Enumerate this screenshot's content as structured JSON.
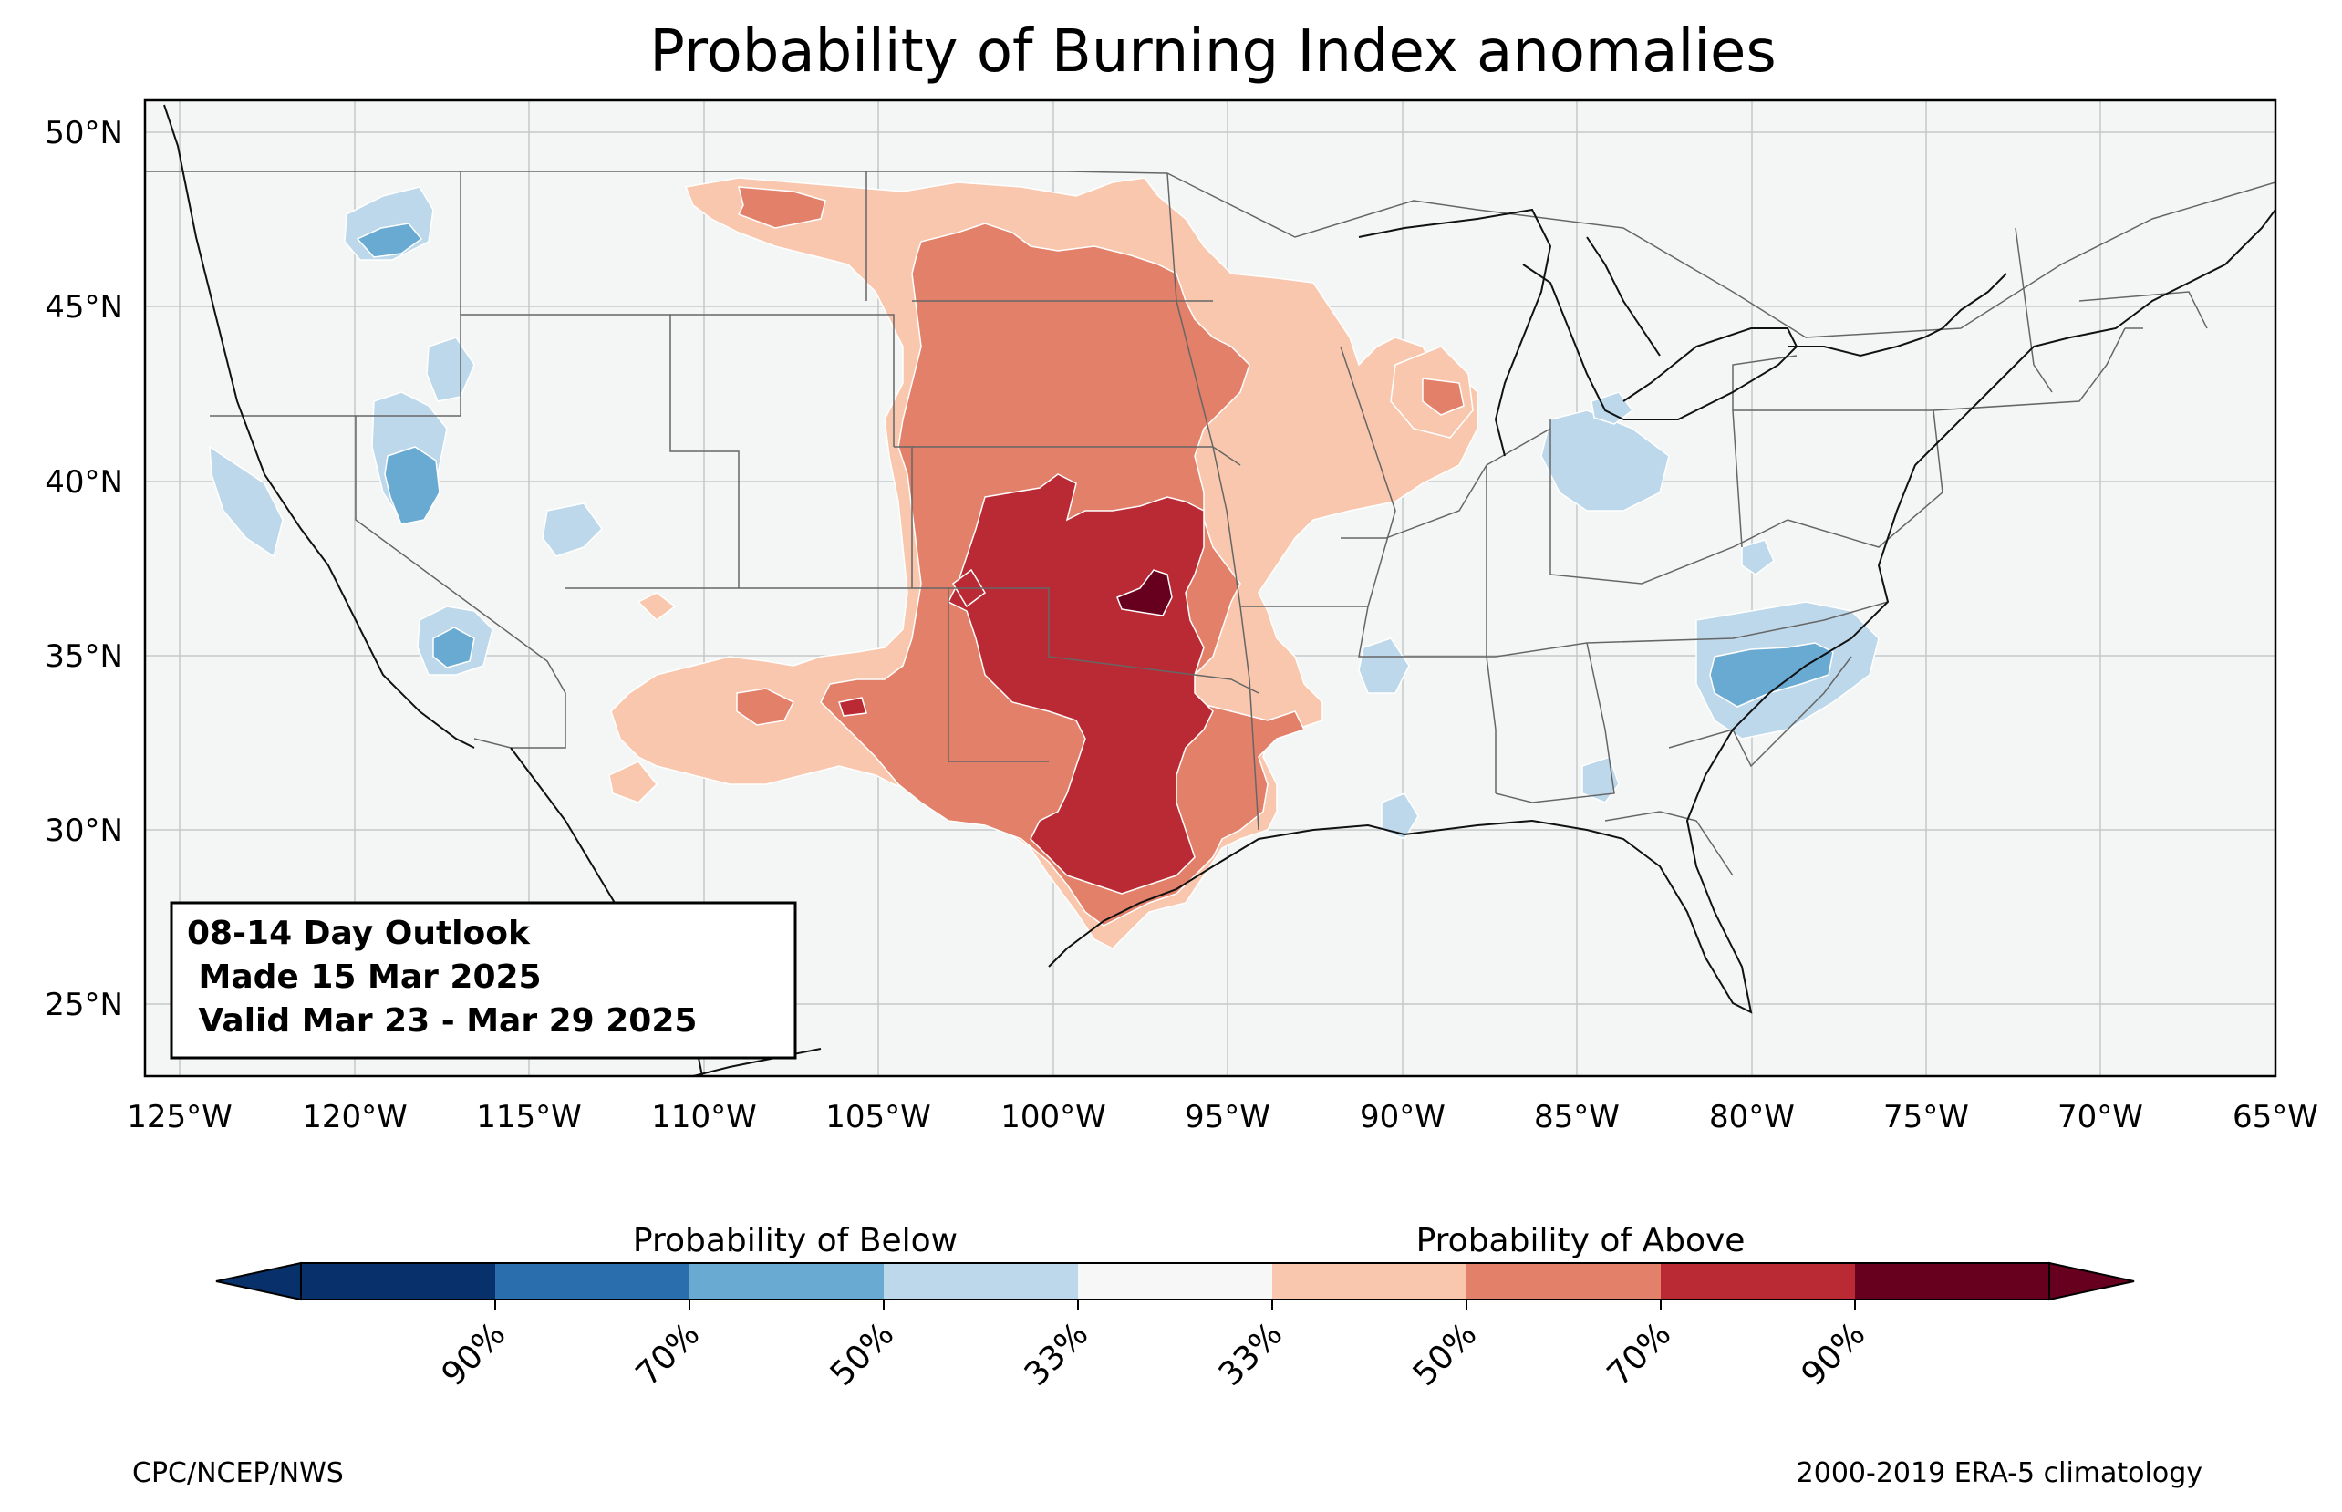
{
  "title": "Probability of Burning Index anomalies",
  "map": {
    "lat_ticks": [
      "50°N",
      "45°N",
      "40°N",
      "35°N",
      "30°N",
      "25°N"
    ],
    "lon_ticks": [
      "125°W",
      "120°W",
      "115°W",
      "110°W",
      "105°W",
      "100°W",
      "95°W",
      "90°W",
      "85°W",
      "80°W",
      "75°W",
      "70°W",
      "65°W"
    ],
    "lat_range": [
      23,
      51
    ],
    "lon_range": [
      -126,
      -65
    ],
    "colors": {
      "ocean": "#f4f6f6",
      "below_90": "#08306b",
      "below_70": "#2b6ead",
      "below_50": "#69aad2",
      "below_33": "#bcd8ea",
      "neutral": "#f4f6f6",
      "above_33": "#f9c7ad",
      "above_50": "#e2806a",
      "above_70": "#b92a34",
      "above_90": "#67001f"
    }
  },
  "info_box": {
    "line1": "08-14 Day Outlook",
    "line2": " Made 15 Mar 2025",
    "line3": " Valid Mar 23 - Mar 29 2025"
  },
  "legend": {
    "below_title": "Probability of Below",
    "above_title": "Probability of Above",
    "tick_labels": [
      "90%",
      "70%",
      "50%",
      "33%",
      "33%",
      "50%",
      "70%",
      "90%"
    ]
  },
  "footer": {
    "left": "CPC/NCEP/NWS",
    "right": "2000-2019 ERA-5 climatology"
  }
}
